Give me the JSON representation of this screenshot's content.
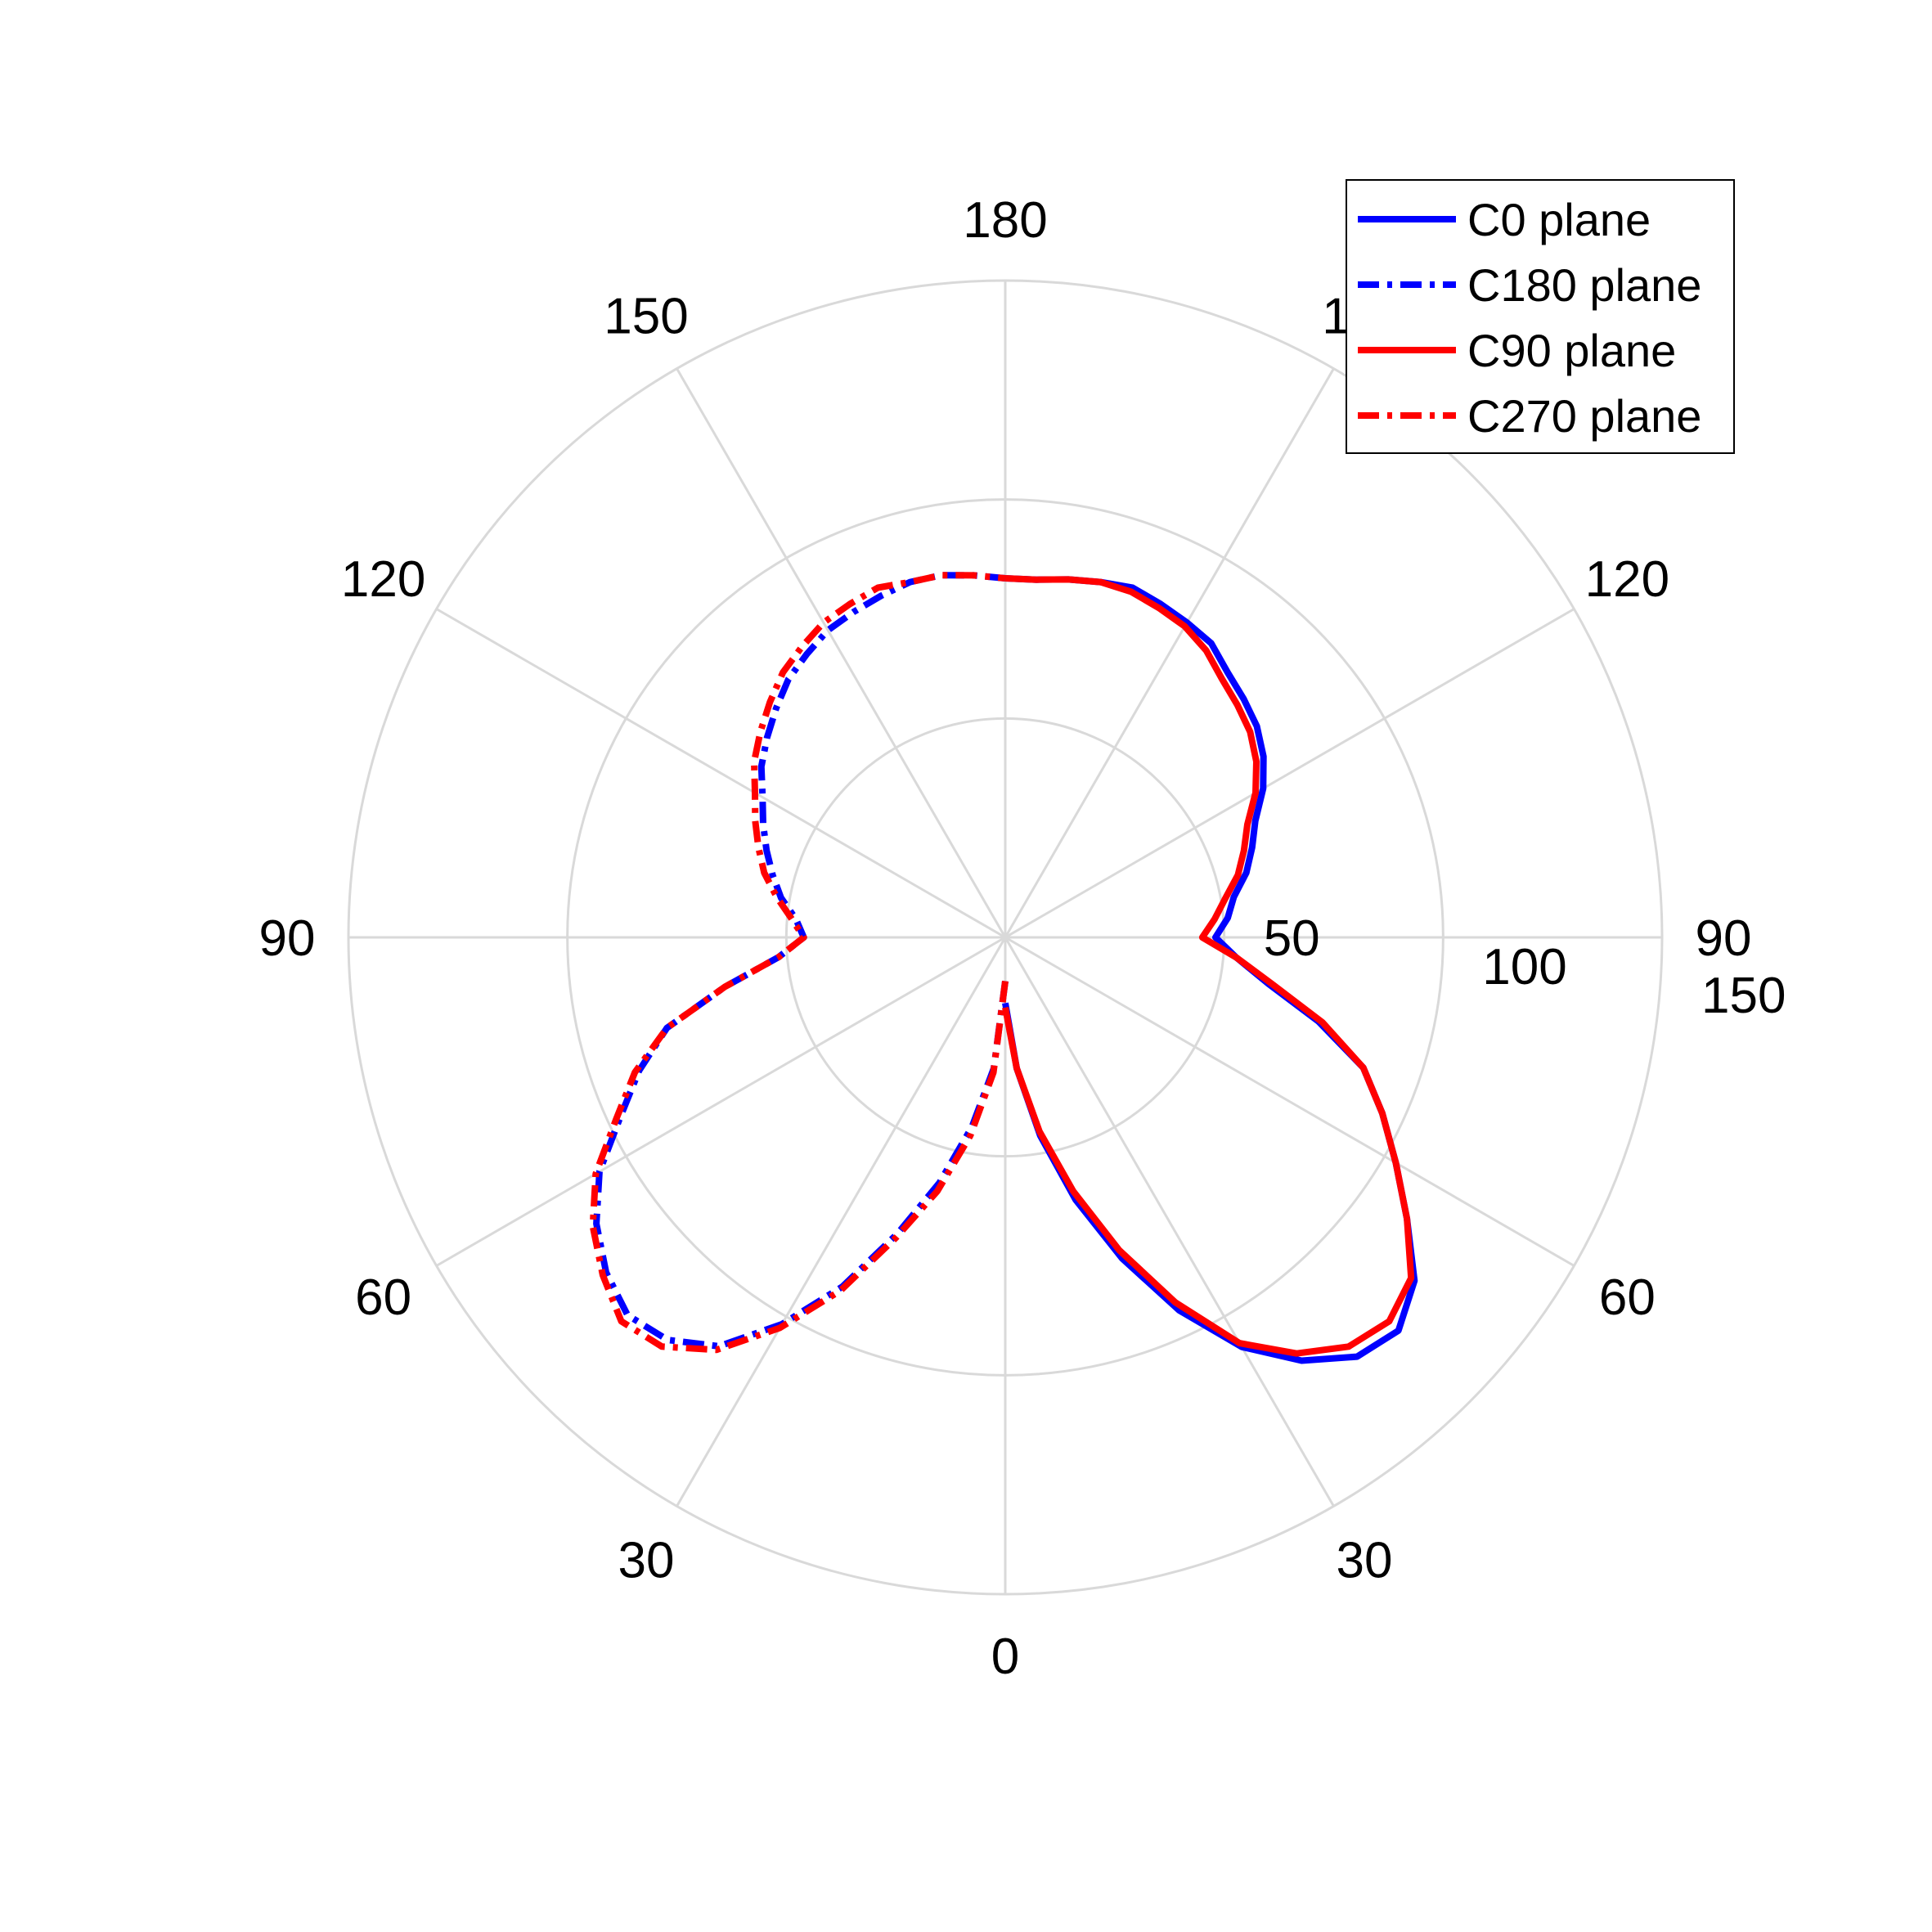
{
  "chart_data": {
    "type": "polar-line",
    "title": "",
    "angle_unit": "degrees",
    "angle_zero": "bottom",
    "radial_range": [
      0,
      150
    ],
    "radial_ticks": [
      50,
      100,
      150
    ],
    "radial_tick_labels": [
      "50",
      "100",
      "150"
    ],
    "angle_ticks": [
      {
        "label": "0",
        "angle": 0,
        "side": "center"
      },
      {
        "label": "30",
        "angle": 30,
        "side": "right"
      },
      {
        "label": "60",
        "angle": 60,
        "side": "right"
      },
      {
        "label": "90",
        "angle": 90,
        "side": "right"
      },
      {
        "label": "120",
        "angle": 120,
        "side": "right"
      },
      {
        "label": "150",
        "angle": 150,
        "side": "right"
      },
      {
        "label": "180",
        "angle": 180,
        "side": "center"
      },
      {
        "label": "150",
        "angle": 150,
        "side": "left"
      },
      {
        "label": "120",
        "angle": 120,
        "side": "left"
      },
      {
        "label": "90",
        "angle": 90,
        "side": "left"
      },
      {
        "label": "60",
        "angle": 60,
        "side": "left"
      },
      {
        "label": "30",
        "angle": 30,
        "side": "left"
      }
    ],
    "grid": true,
    "legend_position": "top-right",
    "series": [
      {
        "name": "C0 plane",
        "side": "right",
        "color": "#0000ff",
        "dash": "solid",
        "angles": [
          0,
          5,
          10,
          15,
          20,
          25,
          30,
          35,
          40,
          45,
          50,
          55,
          60,
          65,
          70,
          75,
          80,
          85,
          90,
          95,
          100,
          105,
          110,
          115,
          120,
          125,
          130,
          135,
          140,
          145,
          150,
          155,
          160,
          165,
          170,
          175,
          180
        ],
        "values": [
          15,
          30,
          46,
          62,
          78,
          94,
          108,
          118,
          125,
          127,
          122,
          112,
          103,
          95,
          87,
          74,
          61,
          53,
          48,
          51,
          53,
          57,
          60,
          63,
          68,
          72,
          75,
          77,
          79,
          82,
          83,
          84,
          85,
          84,
          83,
          82,
          82
        ]
      },
      {
        "name": "C180 plane",
        "side": "left",
        "color": "#0000ff",
        "dash": "dashdot",
        "angles": [
          0,
          5,
          10,
          15,
          20,
          25,
          30,
          35,
          40,
          45,
          50,
          55,
          60,
          65,
          70,
          75,
          80,
          85,
          90,
          95,
          100,
          105,
          110,
          115,
          120,
          125,
          130,
          135,
          140,
          145,
          150,
          155,
          160,
          165,
          170,
          175,
          180
        ],
        "values": [
          10,
          30,
          44,
          58,
          72,
          88,
          102,
          114,
          120,
          122,
          119,
          114,
          107,
          97,
          89,
          80,
          65,
          52,
          46,
          48,
          52,
          55,
          58,
          61,
          64,
          68,
          71,
          74,
          77,
          79,
          81,
          82,
          83,
          84,
          84,
          83,
          82
        ]
      },
      {
        "name": "C90 plane",
        "side": "right",
        "color": "#ff0000",
        "dash": "solid",
        "angles": [
          0,
          5,
          10,
          15,
          20,
          25,
          30,
          35,
          40,
          45,
          50,
          55,
          60,
          65,
          70,
          75,
          80,
          85,
          90,
          95,
          100,
          105,
          110,
          115,
          120,
          125,
          130,
          135,
          140,
          145,
          150,
          155,
          160,
          165,
          170,
          175,
          180
        ],
        "values": [
          16,
          30,
          45,
          60,
          76,
          92,
          107,
          116,
          122,
          124,
          121,
          112,
          103,
          95,
          87,
          75,
          62,
          53,
          45,
          48,
          51,
          55,
          58,
          61,
          66,
          70,
          73,
          75,
          77,
          80,
          82,
          83,
          84,
          84,
          83,
          82,
          82
        ]
      },
      {
        "name": "C270 plane",
        "side": "left",
        "color": "#ff0000",
        "dash": "dashdot",
        "angles": [
          0,
          5,
          10,
          15,
          20,
          25,
          30,
          35,
          40,
          45,
          50,
          55,
          60,
          65,
          70,
          75,
          80,
          85,
          90,
          95,
          100,
          105,
          110,
          115,
          120,
          125,
          130,
          135,
          140,
          145,
          150,
          155,
          160,
          165,
          170,
          175,
          180
        ],
        "values": [
          10,
          31,
          46,
          60,
          73,
          89,
          103,
          115,
          122,
          124,
          120,
          115,
          108,
          98,
          90,
          80,
          65,
          52,
          46,
          49,
          53,
          57,
          60,
          63,
          66,
          70,
          73,
          76,
          79,
          81,
          83,
          84,
          85,
          84,
          84,
          83,
          82
        ]
      }
    ]
  }
}
